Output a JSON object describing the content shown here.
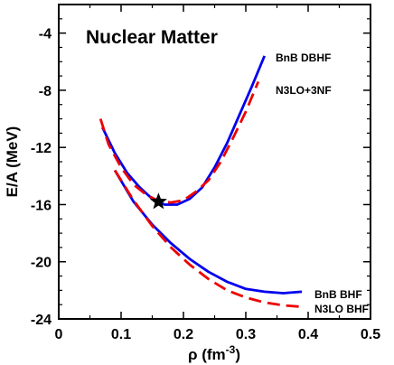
{
  "chart_data": {
    "type": "line",
    "title": "Nuclear Matter",
    "xlabel": "ρ (fm",
    "xlabel_sup": "-3",
    "xlabel_close": ")",
    "ylabel": "E/A (MeV)",
    "xlim": [
      0,
      0.5
    ],
    "ylim": [
      -24,
      -2
    ],
    "xticks": [
      0,
      0.1,
      0.2,
      0.3,
      0.4,
      0.5
    ],
    "xtick_labels": [
      "0",
      "0.1",
      "0.2",
      "0.3",
      "0.4",
      "0.5"
    ],
    "yticks": [
      -24,
      -20,
      -16,
      -12,
      -8,
      -4
    ],
    "ytick_labels": [
      "-24",
      "-20",
      "-16",
      "-12",
      "-8",
      "-4"
    ],
    "grid": false,
    "series": [
      {
        "name": "BnB DBHF",
        "color": "#0000ee",
        "dash": "solid",
        "x": [
          0.07,
          0.09,
          0.11,
          0.13,
          0.15,
          0.17,
          0.19,
          0.21,
          0.23,
          0.25,
          0.27,
          0.29,
          0.31,
          0.33
        ],
        "y": [
          -10.6,
          -12.4,
          -13.8,
          -14.8,
          -15.6,
          -16.0,
          -16.0,
          -15.6,
          -14.8,
          -13.4,
          -11.7,
          -9.7,
          -7.7,
          -5.6
        ]
      },
      {
        "name": "N3LO+3NF",
        "color": "#ee0000",
        "dash": "dashed",
        "x": [
          0.067,
          0.08,
          0.1,
          0.12,
          0.14,
          0.16,
          0.18,
          0.2,
          0.22,
          0.24,
          0.26,
          0.28,
          0.3,
          0.32
        ],
        "y": [
          -10.0,
          -11.8,
          -13.4,
          -14.6,
          -15.3,
          -15.75,
          -15.85,
          -15.7,
          -15.1,
          -14.3,
          -13.0,
          -11.3,
          -9.5,
          -7.4
        ]
      },
      {
        "name": "BnB BHF",
        "color": "#0000ee",
        "dash": "solid",
        "x": [
          0.09,
          0.12,
          0.15,
          0.18,
          0.21,
          0.24,
          0.27,
          0.3,
          0.33,
          0.36,
          0.39
        ],
        "y": [
          -13.6,
          -15.8,
          -17.4,
          -18.7,
          -19.8,
          -20.7,
          -21.4,
          -21.9,
          -22.1,
          -22.2,
          -22.1
        ]
      },
      {
        "name": "N3LO BHF",
        "color": "#ee0000",
        "dash": "dashed",
        "x": [
          0.09,
          0.12,
          0.15,
          0.18,
          0.21,
          0.24,
          0.27,
          0.3,
          0.33,
          0.36,
          0.39
        ],
        "y": [
          -13.6,
          -15.7,
          -17.5,
          -19.0,
          -20.2,
          -21.2,
          -22.0,
          -22.5,
          -22.85,
          -23.05,
          -23.15
        ]
      }
    ],
    "marker": {
      "shape": "star",
      "x": 0.16,
      "y": -15.8,
      "color": "#000000"
    }
  }
}
